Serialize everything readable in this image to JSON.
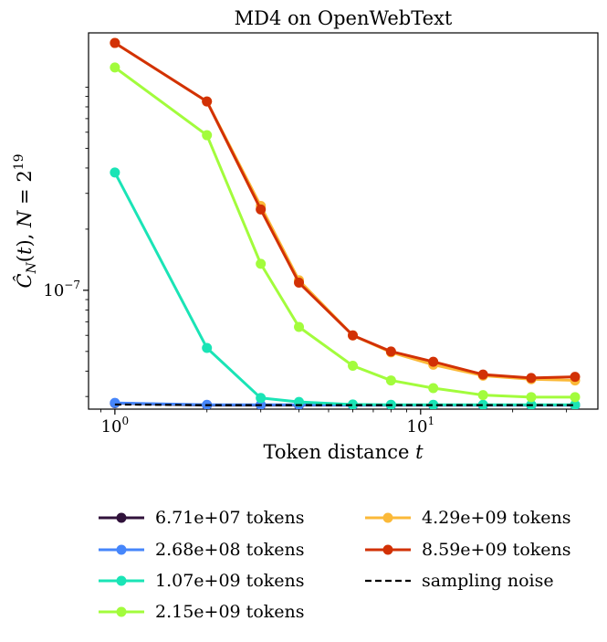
{
  "chart_data": {
    "type": "line",
    "title": "MD4 on OpenWebText",
    "xlabel": "Token distance t",
    "ylabel": "Ĉ_N(t), N = 2^19",
    "xscale": "log",
    "yscale": "log",
    "xlim": [
      0.82,
      38
    ],
    "ylim": [
      2.6e-08,
      1.85e-06
    ],
    "x_ticks": [
      {
        "value": 1,
        "base": "10",
        "exp": "0"
      },
      {
        "value": 10,
        "base": "10",
        "exp": "1"
      }
    ],
    "y_ticks": [
      {
        "value": 1e-07,
        "base": "10",
        "exp": "−7"
      }
    ],
    "x": [
      1,
      2,
      3,
      4,
      6,
      8,
      11,
      16,
      23,
      32
    ],
    "series": [
      {
        "name": "6.71e+07 tokens",
        "color": "#30123b",
        "values": [
          2.78e-08,
          2.72e-08,
          2.72e-08,
          2.72e-08,
          2.72e-08,
          2.72e-08,
          2.72e-08,
          2.72e-08,
          2.72e-08,
          2.72e-08
        ]
      },
      {
        "name": "2.68e+08 tokens",
        "color": "#4686fb",
        "values": [
          2.79e-08,
          2.73e-08,
          2.73e-08,
          2.73e-08,
          2.72e-08,
          2.72e-08,
          2.72e-08,
          2.72e-08,
          2.72e-08,
          2.72e-08
        ]
      },
      {
        "name": "1.07e+09 tokens",
        "color": "#1ae4b6",
        "values": [
          3.8e-07,
          5.2e-08,
          2.95e-08,
          2.82e-08,
          2.74e-08,
          2.73e-08,
          2.73e-08,
          2.73e-08,
          2.73e-08,
          2.73e-08
        ]
      },
      {
        "name": "2.15e+09 tokens",
        "color": "#a2fc3c",
        "values": [
          1.25e-06,
          5.8e-07,
          1.35e-07,
          6.6e-08,
          4.25e-08,
          3.6e-08,
          3.3e-08,
          3.05e-08,
          2.98e-08,
          2.98e-08
        ]
      },
      {
        "name": "4.29e+09 tokens",
        "color": "#fbb938",
        "values": [
          1.65e-06,
          8.5e-07,
          2.6e-07,
          1.12e-07,
          6e-08,
          4.95e-08,
          4.3e-08,
          3.8e-08,
          3.65e-08,
          3.6e-08
        ]
      },
      {
        "name": "8.59e+09 tokens",
        "color": "#d23105",
        "values": [
          1.65e-06,
          8.5e-07,
          2.5e-07,
          1.09e-07,
          6e-08,
          5e-08,
          4.45e-08,
          3.85e-08,
          3.7e-08,
          3.75e-08
        ]
      }
    ],
    "noise": {
      "name": "sampling noise",
      "color": "#000000",
      "values": [
        2.74e-08,
        2.72e-08,
        2.72e-08,
        2.72e-08,
        2.72e-08,
        2.72e-08,
        2.72e-08,
        2.72e-08,
        2.72e-08,
        2.72e-08
      ]
    },
    "legend_position": "below"
  }
}
